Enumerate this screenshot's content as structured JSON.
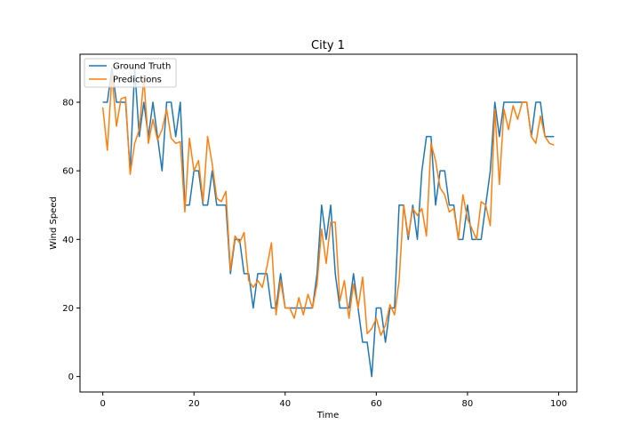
{
  "chart_data": {
    "type": "line",
    "title": "City 1",
    "xlabel": "Time",
    "ylabel": "Wind Speed",
    "xlim": [
      -5,
      104
    ],
    "ylim": [
      -4.5,
      94
    ],
    "x_ticks": [
      0,
      20,
      40,
      60,
      80,
      100
    ],
    "y_ticks": [
      0,
      20,
      40,
      60,
      80
    ],
    "grid": false,
    "legend_position": "top-left",
    "series": [
      {
        "name": "Ground Truth",
        "color": "#1f77b4",
        "values": [
          80,
          80,
          90,
          80,
          80,
          80,
          60,
          90,
          70,
          80,
          70,
          80,
          70,
          60,
          80,
          80,
          70,
          80,
          50,
          50,
          60,
          60,
          50,
          50,
          60,
          50,
          50,
          50,
          30,
          40,
          40,
          30,
          30,
          20,
          30,
          30,
          30,
          20,
          20,
          30,
          20,
          20,
          20,
          20,
          20,
          20,
          20,
          30,
          50,
          40,
          50,
          30,
          20,
          20,
          20,
          30,
          20,
          10,
          10,
          0,
          20,
          20,
          10,
          20,
          20,
          50,
          50,
          40,
          50,
          40,
          60,
          70,
          70,
          50,
          60,
          60,
          50,
          50,
          40,
          40,
          50,
          40,
          40,
          40,
          50,
          60,
          80,
          70,
          80,
          80,
          80,
          80,
          80,
          80,
          70,
          80,
          80,
          70,
          70,
          70
        ]
      },
      {
        "name": "Predictions",
        "color": "#ff7f0e",
        "values": [
          78.5,
          66,
          88,
          73,
          81,
          81.5,
          59,
          68,
          72,
          87,
          68,
          75,
          69,
          72,
          78,
          69.5,
          68,
          68.5,
          48,
          69.5,
          60,
          63,
          51,
          70,
          62,
          52,
          51,
          54,
          31,
          41,
          39,
          42,
          28,
          26,
          28,
          26,
          32,
          39,
          18,
          28,
          20,
          20,
          17,
          23,
          18,
          24,
          20,
          27,
          43,
          33,
          45,
          45,
          22,
          28,
          17,
          27,
          20,
          29,
          12.5,
          14,
          17,
          12,
          15,
          21,
          18,
          28,
          50,
          41,
          49,
          47,
          49,
          41,
          68,
          63,
          55,
          53,
          48,
          49,
          40,
          53,
          46,
          43,
          40,
          51,
          50,
          44,
          78,
          56,
          78,
          72,
          79,
          75,
          80,
          80,
          70,
          68,
          76,
          70,
          68,
          67.5
        ]
      }
    ]
  }
}
